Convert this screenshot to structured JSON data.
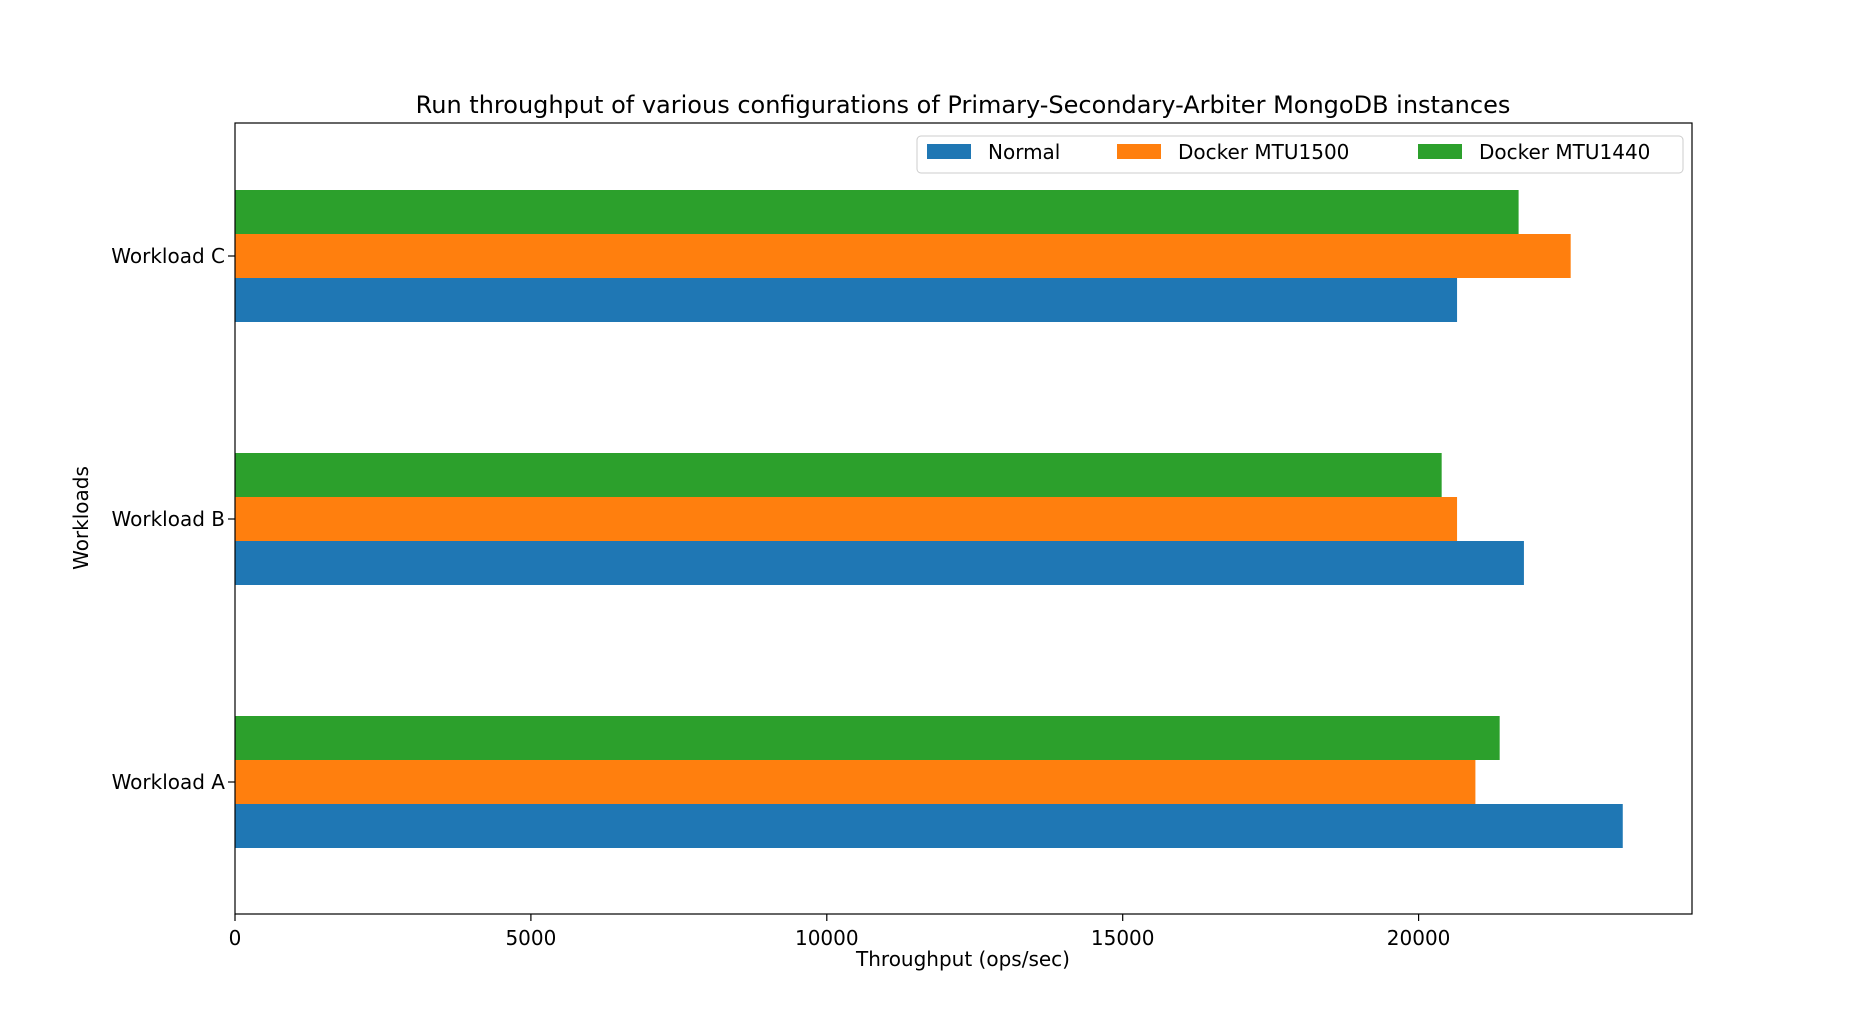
{
  "chart_data": {
    "type": "bar",
    "orientation": "horizontal",
    "title": "Run throughput of various configurations of Primary-Secondary-Arbiter MongoDB instances",
    "xlabel": "Throughput (ops/sec)",
    "ylabel": "Workloads",
    "categories": [
      "Workload A",
      "Workload B",
      "Workload C"
    ],
    "series": [
      {
        "name": "Normal",
        "color": "#1f77b4",
        "values": [
          23450,
          21780,
          20650
        ]
      },
      {
        "name": "Docker MTU1500",
        "color": "#ff7f0e",
        "values": [
          20960,
          20650,
          22570
        ]
      },
      {
        "name": "Docker MTU1440",
        "color": "#2ca02c",
        "values": [
          21370,
          20390,
          21690
        ]
      }
    ],
    "xlim": [
      0,
      24620
    ],
    "xticks": [
      0,
      5000,
      10000,
      15000,
      20000
    ],
    "xtick_labels": [
      "0",
      "5000",
      "10000",
      "15000",
      "20000"
    ],
    "grid": false,
    "legend": {
      "placement": "top-right",
      "columns": 3
    }
  }
}
